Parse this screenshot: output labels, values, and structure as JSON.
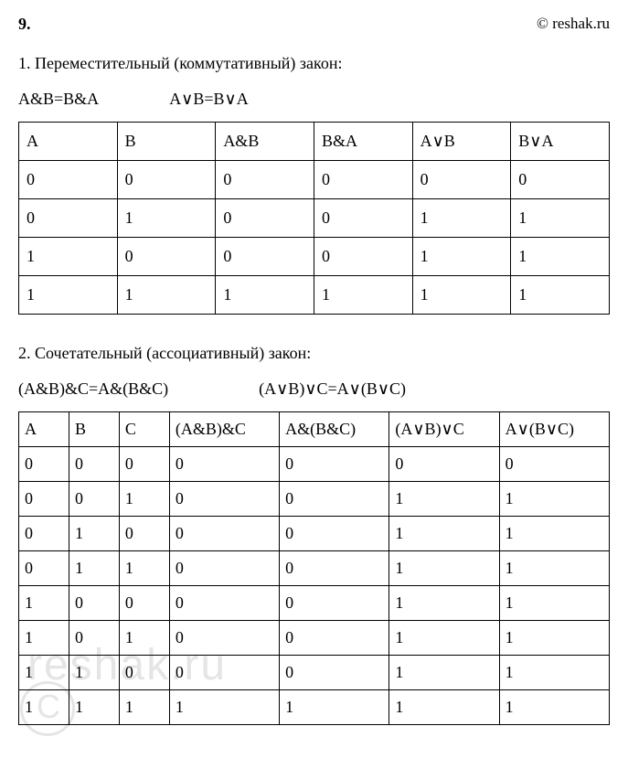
{
  "header": {
    "problem_number": "9.",
    "site": "© reshak.ru"
  },
  "section1": {
    "title": "1. Переместительный (коммутативный) закон:",
    "formula1": "A&B=B&A",
    "formula2": "A∨B=B∨A",
    "columns": [
      "A",
      "B",
      "A&B",
      "B&A",
      "A∨B",
      "B∨A"
    ],
    "rows": [
      [
        "0",
        "0",
        "0",
        "0",
        "0",
        "0"
      ],
      [
        "0",
        "1",
        "0",
        "0",
        "1",
        "1"
      ],
      [
        "1",
        "0",
        "0",
        "0",
        "1",
        "1"
      ],
      [
        "1",
        "1",
        "1",
        "1",
        "1",
        "1"
      ]
    ]
  },
  "section2": {
    "title": "2. Сочетательный (ассоциативный) закон:",
    "formula1": "(A&B)&C=A&(B&C)",
    "formula2": "(A∨B)∨C=A∨(B∨C)",
    "columns": [
      "A",
      "B",
      "C",
      "(A&B)&C",
      "A&(B&C)",
      "(A∨B)∨C",
      "A∨(B∨C)"
    ],
    "rows": [
      [
        "0",
        "0",
        "0",
        "0",
        "0",
        "0",
        "0"
      ],
      [
        "0",
        "0",
        "1",
        "0",
        "0",
        "1",
        "1"
      ],
      [
        "0",
        "1",
        "0",
        "0",
        "0",
        "1",
        "1"
      ],
      [
        "0",
        "1",
        "1",
        "0",
        "0",
        "1",
        "1"
      ],
      [
        "1",
        "0",
        "0",
        "0",
        "0",
        "1",
        "1"
      ],
      [
        "1",
        "0",
        "1",
        "0",
        "0",
        "1",
        "1"
      ],
      [
        "1",
        "1",
        "0",
        "0",
        "0",
        "1",
        "1"
      ],
      [
        "1",
        "1",
        "1",
        "1",
        "1",
        "1",
        "1"
      ]
    ]
  },
  "watermark": {
    "text": "reshak.ru",
    "copyright": "C"
  }
}
